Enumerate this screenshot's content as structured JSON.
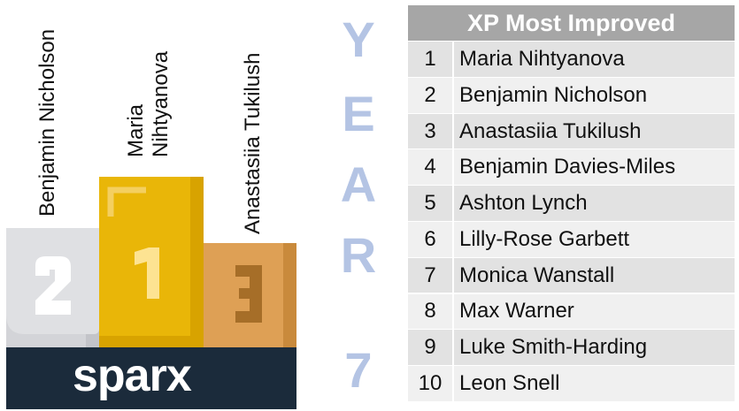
{
  "podium": {
    "second": {
      "name": "Benjamin Nicholson",
      "place": "2"
    },
    "first": {
      "name_line1": "Maria",
      "name_line2": "Nihtyanova",
      "place": "1"
    },
    "third": {
      "name": "Anastasiia Tukilush",
      "place": "3"
    },
    "brand": "sparx",
    "colors": {
      "second": "#d3d4d8",
      "first": "#e9b608",
      "third": "#dea055",
      "base": "#1b2b3b"
    }
  },
  "year": {
    "letters": [
      "Y",
      "E",
      "A",
      "R"
    ],
    "number": "7"
  },
  "table": {
    "title": "XP Most Improved",
    "rows": [
      {
        "rank": "1",
        "name": "Maria Nihtyanova"
      },
      {
        "rank": "2",
        "name": "Benjamin Nicholson"
      },
      {
        "rank": "3",
        "name": "Anastasiia Tukilush"
      },
      {
        "rank": "4",
        "name": "Benjamin Davies-Miles"
      },
      {
        "rank": "5",
        "name": "Ashton Lynch"
      },
      {
        "rank": "6",
        "name": "Lilly-Rose Garbett"
      },
      {
        "rank": "7",
        "name": "Monica Wanstall"
      },
      {
        "rank": "8",
        "name": "Max Warner"
      },
      {
        "rank": "9",
        "name": "Luke Smith-Harding"
      },
      {
        "rank": "10",
        "name": "Leon Snell"
      }
    ]
  }
}
